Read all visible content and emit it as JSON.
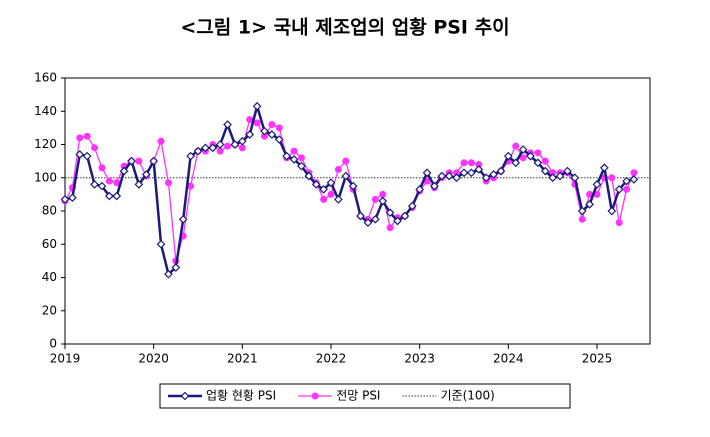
{
  "chart_data": {
    "type": "line",
    "title": "<그림 1> 국내 제조업의 업황 PSI 추이",
    "categories": [
      "2019",
      null,
      null,
      null,
      null,
      null,
      null,
      null,
      null,
      null,
      null,
      null,
      "2020",
      null,
      null,
      null,
      null,
      null,
      null,
      null,
      null,
      null,
      null,
      null,
      "2021",
      null,
      null,
      null,
      null,
      null,
      null,
      null,
      null,
      null,
      null,
      null,
      "2022",
      null,
      null,
      null,
      null,
      null,
      null,
      null,
      null,
      null,
      null,
      null,
      "2023",
      null,
      null,
      null,
      null,
      null,
      null,
      null,
      null,
      null,
      null,
      null,
      "2024",
      null,
      null,
      null,
      null,
      null,
      null,
      null,
      null,
      null,
      null,
      null,
      "2025",
      null,
      null,
      null,
      null,
      null
    ],
    "series": [
      {
        "name": "업황 현황 PSI",
        "color": "#1a1a7a",
        "marker": "diamond",
        "values": [
          87,
          88,
          114,
          113,
          96,
          95,
          89,
          89,
          104,
          110,
          96,
          102,
          110,
          60,
          42,
          46,
          75,
          113,
          116,
          118,
          118,
          120,
          132,
          120,
          122,
          126,
          143,
          128,
          126,
          123,
          113,
          111,
          107,
          101,
          96,
          93,
          97,
          87,
          101,
          95,
          77,
          73,
          75,
          86,
          79,
          74,
          77,
          83,
          93,
          103,
          95,
          101,
          101,
          100,
          103,
          103,
          105,
          100,
          102,
          104,
          113,
          109,
          117,
          113,
          109,
          104,
          100,
          101,
          104,
          100,
          80,
          84,
          96,
          106,
          80,
          93,
          98,
          99
        ]
      },
      {
        "name": "전망 PSI",
        "color": "#ff33ff",
        "marker": "circle",
        "values": [
          86,
          94,
          124,
          125,
          118,
          106,
          98,
          97,
          107,
          110,
          110,
          101,
          110,
          122,
          97,
          50,
          65,
          95,
          116,
          116,
          120,
          116,
          119,
          120,
          118,
          135,
          133,
          125,
          132,
          130,
          112,
          116,
          112,
          103,
          97,
          87,
          90,
          105,
          110,
          93,
          77,
          75,
          87,
          90,
          70,
          76,
          77,
          82,
          92,
          98,
          94,
          100,
          103,
          103,
          109,
          109,
          108,
          98,
          100,
          104,
          110,
          119,
          112,
          115,
          115,
          110,
          103,
          103,
          103,
          96,
          75,
          90,
          90,
          100,
          100,
          73,
          93,
          103
        ]
      }
    ],
    "reference": {
      "value": 100,
      "label": "기준(100)"
    },
    "ylim": [
      0,
      160
    ],
    "yticks": [
      0,
      20,
      40,
      60,
      80,
      100,
      120,
      140,
      160
    ],
    "grid": false
  }
}
